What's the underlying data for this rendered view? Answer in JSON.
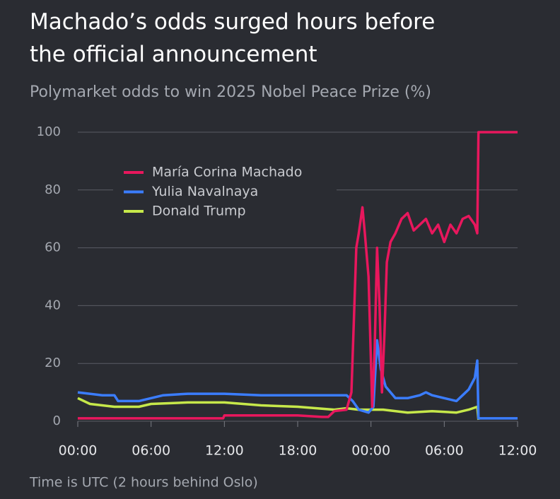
{
  "chart_data": {
    "type": "line",
    "title": "Machado’s odds surged hours before the official announcement",
    "subtitle": "Polymarket odds to win 2025 Nobel Peace Prize (%)",
    "note": "Time is UTC (2 hours behind Oslo)",
    "xlim": [
      0,
      36
    ],
    "xticks": [
      {
        "value": 0,
        "label": "00:00"
      },
      {
        "value": 6,
        "label": "06:00"
      },
      {
        "value": 12,
        "label": "12:00"
      },
      {
        "value": 18,
        "label": "18:00"
      },
      {
        "value": 24,
        "label": "00:00"
      },
      {
        "value": 30,
        "label": "06:00"
      },
      {
        "value": 36,
        "label": "12:00"
      }
    ],
    "ylim": [
      0,
      100
    ],
    "yticks": [
      0,
      20,
      40,
      60,
      80,
      100
    ],
    "grid": true,
    "series": [
      {
        "name": "María Corina Machado",
        "color": "#e8175d",
        "x": [
          0,
          6,
          11.9,
          12,
          18,
          20,
          20.5,
          21,
          22,
          22.4,
          22.6,
          22.8,
          23,
          23.3,
          23.5,
          23.8,
          24,
          24.1,
          24.3,
          24.5,
          24.7,
          24.9,
          25.1,
          25.3,
          25.6,
          26,
          26.5,
          27,
          27.5,
          28,
          28.5,
          29,
          29.5,
          30,
          30.5,
          31,
          31.5,
          32,
          32.5,
          32.7,
          32.8,
          36
        ],
        "values": [
          1,
          1,
          1,
          2,
          2,
          1.5,
          1.5,
          3.5,
          4,
          10,
          35,
          60,
          65,
          74,
          65,
          50,
          20,
          5,
          25,
          60,
          40,
          10,
          30,
          55,
          62,
          65,
          70,
          72,
          66,
          68,
          70,
          65,
          68,
          62,
          68,
          65,
          70,
          71,
          68,
          65,
          100,
          100
        ]
      },
      {
        "name": "Yulia Navalnaya",
        "color": "#3b7dff",
        "x": [
          0,
          2,
          3,
          3.3,
          5,
          6,
          7,
          9,
          12,
          15,
          18,
          21,
          22,
          22.5,
          23,
          23.8,
          24.2,
          24.5,
          24.8,
          25.2,
          26,
          27,
          28,
          28.5,
          29,
          30,
          31,
          31.5,
          32,
          32.5,
          32.7,
          32.8,
          36
        ],
        "values": [
          10,
          9,
          9,
          7,
          7,
          8,
          9,
          9.5,
          9.5,
          9,
          9,
          9,
          9,
          7,
          4,
          3,
          5,
          28,
          18,
          12,
          8,
          8,
          9,
          10,
          9,
          8,
          7,
          9,
          11,
          15,
          21,
          1,
          1
        ]
      },
      {
        "name": "Donald Trump",
        "color": "#c6e84a",
        "x": [
          0,
          1,
          3,
          5,
          6,
          9,
          12,
          15,
          18,
          21,
          22,
          23,
          24,
          25,
          27,
          29,
          31,
          32,
          32.7,
          32.8
        ],
        "values": [
          8,
          6,
          5,
          5,
          6,
          6.5,
          6.5,
          5.5,
          5,
          4,
          4.5,
          4,
          4,
          4,
          3,
          3.5,
          3,
          4,
          5,
          0.5
        ]
      }
    ]
  }
}
